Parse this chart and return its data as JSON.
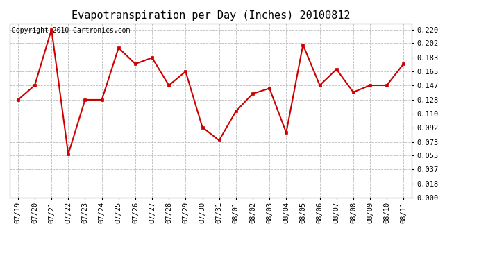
{
  "title": "Evapotranspiration per Day (Inches) 20100812",
  "copyright_text": "Copyright 2010 Cartronics.com",
  "line_color": "#cc0000",
  "marker_color": "#cc0000",
  "background_color": "#ffffff",
  "grid_color": "#bbbbbb",
  "dates": [
    "07/19",
    "07/20",
    "07/21",
    "07/22",
    "07/23",
    "07/24",
    "07/25",
    "07/26",
    "07/27",
    "07/28",
    "07/29",
    "07/30",
    "07/31",
    "08/01",
    "08/02",
    "08/03",
    "08/04",
    "08/05",
    "08/06",
    "08/07",
    "08/08",
    "08/09",
    "08/10",
    "08/11"
  ],
  "values": [
    0.128,
    0.147,
    0.22,
    0.057,
    0.128,
    0.128,
    0.196,
    0.175,
    0.183,
    0.147,
    0.165,
    0.092,
    0.075,
    0.113,
    0.136,
    0.143,
    0.085,
    0.2,
    0.147,
    0.168,
    0.138,
    0.147,
    0.147,
    0.175
  ],
  "yticks": [
    0.0,
    0.018,
    0.037,
    0.055,
    0.073,
    0.092,
    0.11,
    0.128,
    0.147,
    0.165,
    0.183,
    0.202,
    0.22
  ],
  "ylim": [
    0.0,
    0.228
  ],
  "title_fontsize": 11,
  "copyright_fontsize": 7,
  "tick_fontsize": 7.5,
  "line_width": 1.5,
  "marker_size": 3.5
}
